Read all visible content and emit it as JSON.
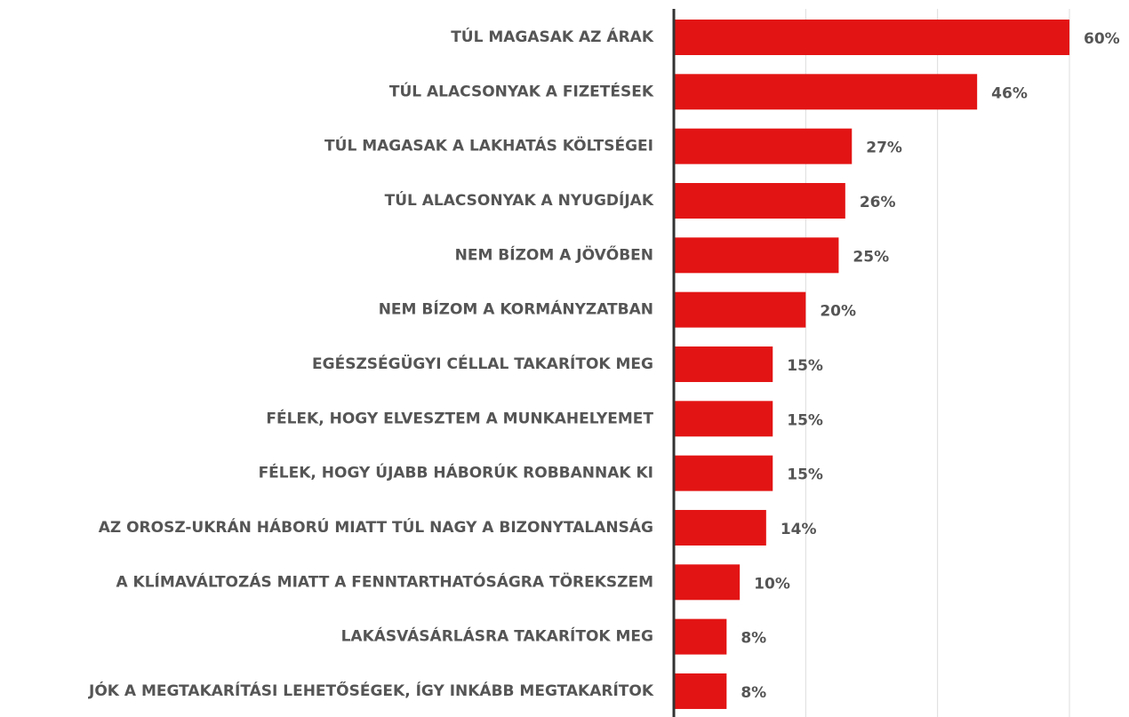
{
  "chart_data": {
    "type": "bar",
    "orientation": "horizontal",
    "categories": [
      "TÚL MAGASAK AZ ÁRAK",
      "TÚL ALACSONYAK A FIZETÉSEK",
      "TÚL MAGASAK A LAKHATÁS KÖLTSÉGEI",
      "TÚL ALACSONYAK A NYUGDÍJAK",
      "NEM BÍZOM A JÖVŐBEN",
      "NEM BÍZOM A KORMÁNYZATBAN",
      "EGÉSZSÉGÜGYI CÉLLAL TAKARÍTOK MEG",
      "FÉLEK, HOGY ELVESZTEM A MUNKAHELYEMET",
      "FÉLEK, HOGY ÚJABB HÁBORÚK ROBBANNAK KI",
      "AZ OROSZ-UKRÁN HÁBORÚ MIATT TÚL NAGY A BIZONYTALANSÁG",
      "A KLÍMAVÁLTOZÁS MIATT A FENNTARTHATÓSÁGRA TÖREKSZEM",
      "LAKÁSVÁSÁRLÁSRA TAKARÍTOK MEG",
      "JÓK A MEGTAKARÍTÁSI LEHETŐSÉGEK, ÍGY INKÁBB MEGTAKARÍTOK"
    ],
    "values": [
      60,
      46,
      27,
      26,
      25,
      20,
      15,
      15,
      15,
      14,
      10,
      8,
      8
    ],
    "value_labels": [
      "60%",
      "46%",
      "27%",
      "26%",
      "25%",
      "20%",
      "15%",
      "15%",
      "15%",
      "14%",
      "10%",
      "8%",
      "8%"
    ],
    "color": "#e31414",
    "xlim": [
      0,
      60
    ],
    "xticks": [
      0,
      20,
      40,
      60
    ],
    "grid": true
  }
}
